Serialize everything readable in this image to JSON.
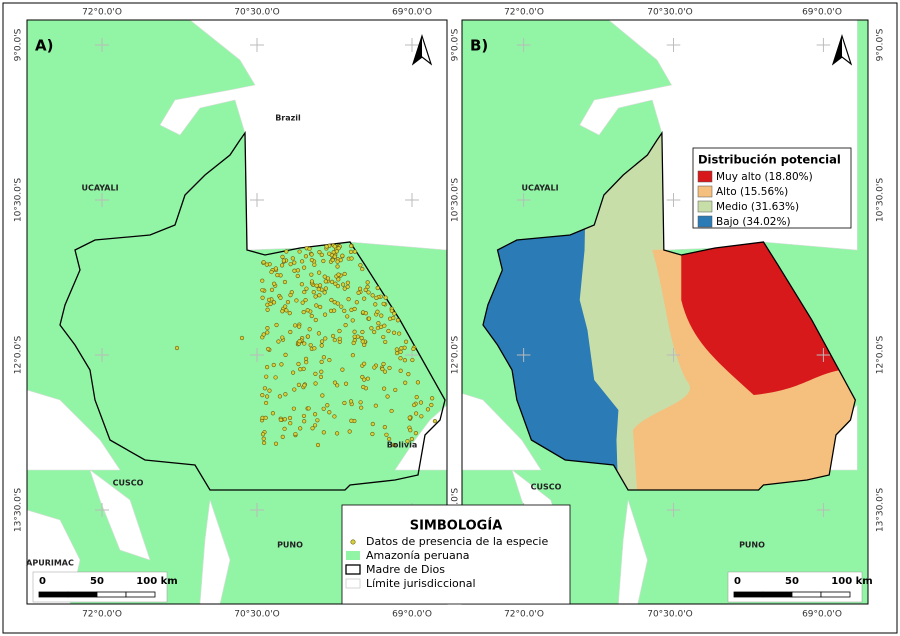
{
  "graticule": {
    "lon": [
      "72°0.0'O",
      "70°30.0'O",
      "69°0.0'O"
    ],
    "lat": [
      "9°0.0'S",
      "10°30.0'S",
      "12°0.0'S",
      "13°30.0'S"
    ]
  },
  "panels": [
    {
      "label": "A)",
      "places": [
        "Brazil",
        "UCAYALI",
        "Bolivia",
        "CUSCO",
        "PUNO",
        "APURIMAC"
      ]
    },
    {
      "label": "B)",
      "places": [
        "UCAYALI",
        "CUSCO",
        "PUNO"
      ]
    }
  ],
  "scale_bar": {
    "labels": [
      "0",
      "50",
      "100 km"
    ]
  },
  "legend": {
    "title": "Distribución potencial",
    "items": [
      {
        "label": "Muy alto (18.80%)",
        "color": "#d7191c"
      },
      {
        "label": "Alto (15.56%)",
        "color": "#f5bf7d"
      },
      {
        "label": "Medio (31.63%)",
        "color": "#c8dea9"
      },
      {
        "label": "Bajo (34.02%)",
        "color": "#2b7bb6"
      }
    ]
  },
  "symbology": {
    "title": "SIMBOLOGÍA",
    "items": [
      "Datos de presencia de la especie",
      "Amazonía peruana",
      "Madre de Dios",
      "Límite jurisdiccional"
    ]
  }
}
